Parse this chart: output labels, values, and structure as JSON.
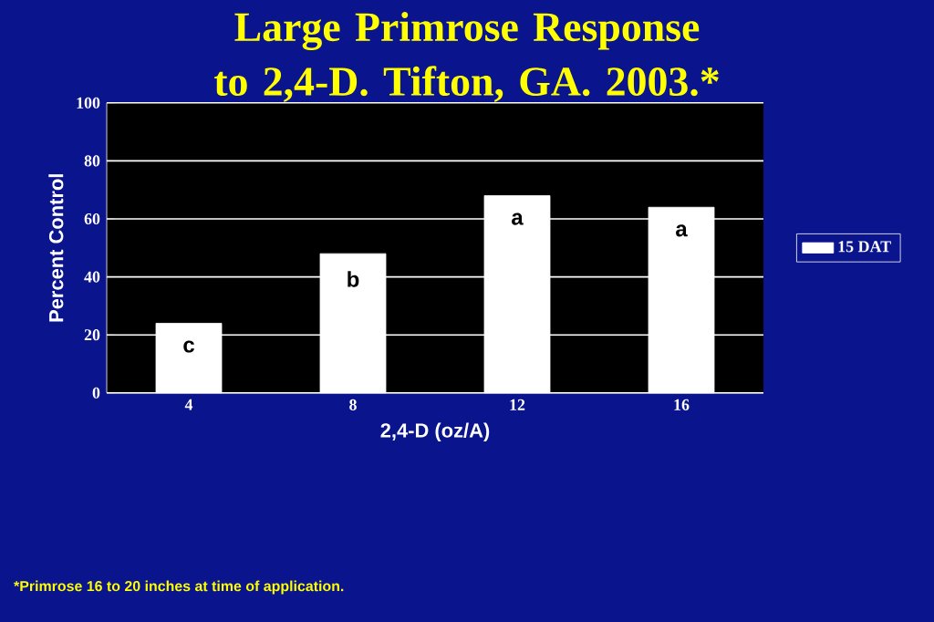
{
  "chart_data": {
    "type": "bar",
    "title": "Large Primrose Response to 2,4-D. Tifton, GA. 2003.*",
    "xlabel": "2,4-D (oz/A)",
    "ylabel": "Percent Control",
    "categories": [
      "4",
      "8",
      "12",
      "16"
    ],
    "series": [
      {
        "name": "15 DAT",
        "color": "#ffffff",
        "values": [
          24,
          48,
          68,
          64
        ],
        "value_labels": [
          "c",
          "b",
          "a",
          "a"
        ]
      }
    ],
    "ylim": [
      0,
      100
    ],
    "yticks": [
      0,
      20,
      40,
      60,
      80,
      100
    ],
    "grid": "y",
    "legend": "right",
    "annotations": [
      "*Primrose 16 to 20 inches at time of application."
    ]
  }
}
